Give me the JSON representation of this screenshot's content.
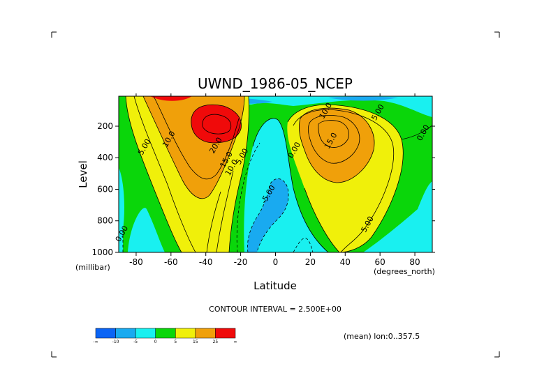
{
  "chart_data": {
    "type": "heatmap",
    "subtype": "filled-contour",
    "title": "UWND_1986-05_NCEP",
    "xlabel": "Latitude",
    "ylabel": "Level",
    "x_unit": "(degrees_north)",
    "y_unit": "(millibar)",
    "xlim": [
      -90,
      90
    ],
    "ylim": [
      1000,
      10
    ],
    "y_inverted": true,
    "x_ticks": [
      -80,
      -60,
      -40,
      -20,
      0,
      20,
      40,
      60,
      80
    ],
    "y_ticks": [
      200,
      400,
      600,
      800,
      1000
    ],
    "contour_interval_text": "CONTOUR INTERVAL = 2.500E+00",
    "mean_note": "(mean) lon:0..357.5",
    "grid": false,
    "colorbar": {
      "position": "bottom-left",
      "colors": [
        "#0a64f5",
        "#19aaf0",
        "#19f0f0",
        "#0ad60a",
        "#f0f00a",
        "#f0a00a",
        "#f00a0a"
      ],
      "tick_labels": [
        "-∞",
        "-10",
        "-5",
        "0",
        "5",
        "15",
        "25",
        "∞"
      ]
    },
    "contour_labels": [
      {
        "text": "5.00",
        "lat": -74,
        "lev": 340
      },
      {
        "text": "10.0",
        "lat": -60,
        "lev": 290
      },
      {
        "text": "20.0",
        "lat": -33,
        "lev": 330
      },
      {
        "text": "15.0",
        "lat": -27,
        "lev": 420
      },
      {
        "text": "10.0",
        "lat": -24,
        "lev": 470
      },
      {
        "text": "5.00",
        "lat": -18,
        "lev": 400
      },
      {
        "text": "0.00",
        "lat": 12,
        "lev": 360
      },
      {
        "text": "-5.00",
        "lat": -3,
        "lev": 640
      },
      {
        "text": "10.0",
        "lat": 30,
        "lev": 110
      },
      {
        "text": "5.00",
        "lat": 60,
        "lev": 120
      },
      {
        "text": "15.0",
        "lat": 33,
        "lev": 300
      },
      {
        "text": "5.00",
        "lat": 54,
        "lev": 830
      },
      {
        "text": "0.00",
        "lat": 86,
        "lev": 250
      },
      {
        "text": "0.00",
        "lat": -87,
        "lev": 890
      }
    ],
    "series": [
      {
        "lat": [
          -90,
          -80,
          -70,
          -60,
          -50,
          -40,
          -30,
          -20,
          -10,
          0,
          10,
          20,
          30,
          40,
          50,
          60,
          70,
          80,
          90
        ],
        "values_200mb": [
          0,
          2,
          6,
          12,
          20,
          25,
          28,
          15,
          3,
          -3,
          3,
          12,
          22,
          21,
          14,
          7,
          3,
          1,
          0
        ]
      },
      {
        "lat": [
          -90,
          -80,
          -70,
          -60,
          -50,
          -40,
          -30,
          -20,
          -10,
          0,
          10,
          20,
          30,
          40,
          50,
          60,
          70,
          80,
          90
        ],
        "values_500mb": [
          0,
          3,
          8,
          13,
          17,
          17,
          13,
          6,
          0,
          -4,
          0,
          7,
          13,
          14,
          10,
          5,
          2,
          0,
          -1
        ]
      },
      {
        "lat": [
          -90,
          -80,
          -70,
          -60,
          -50,
          -40,
          -30,
          -20,
          -10,
          0,
          10,
          20,
          30,
          40,
          50,
          60,
          70,
          80,
          90
        ],
        "values_850mb": [
          -1,
          0,
          3,
          7,
          9,
          7,
          3,
          0,
          -3,
          -5,
          -3,
          0,
          3,
          6,
          5,
          3,
          0,
          -1,
          -1
        ]
      }
    ]
  }
}
